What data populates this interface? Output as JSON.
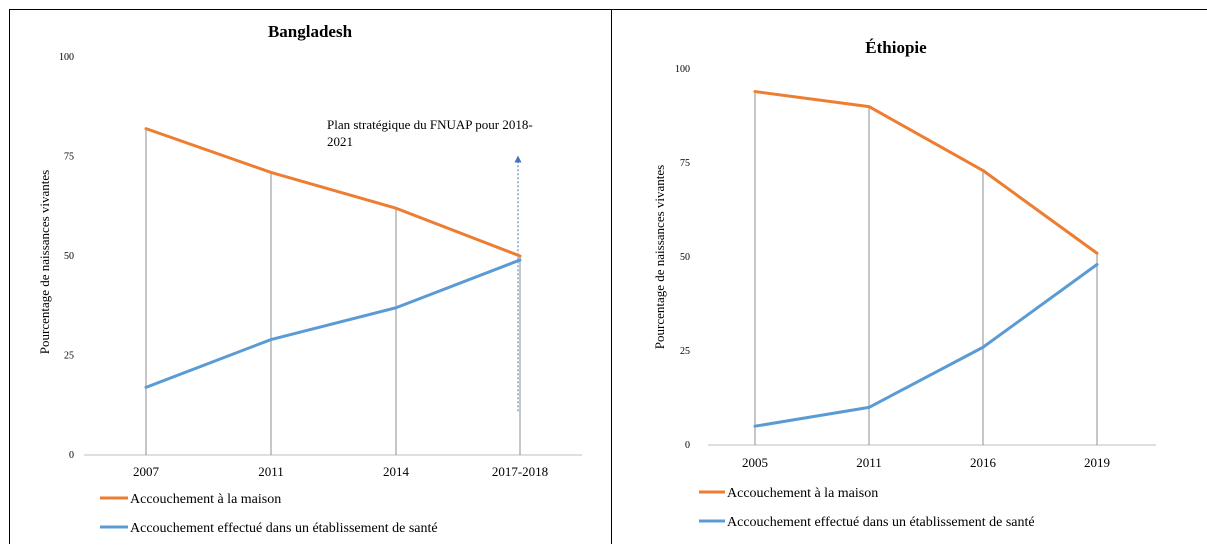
{
  "colors": {
    "home_delivery": "#ED7D31",
    "facility_delivery": "#5B9BD5",
    "drop_lines": "#8C8C8C",
    "annotation_arrow": "#4472C4",
    "axis": "#BFBFBF",
    "text": "#000000"
  },
  "legend": {
    "home": "Accouchement à la maison",
    "facility": "Accouchement effectué dans un établissement de santé"
  },
  "chart_data": [
    {
      "type": "line",
      "title": "Bangladesh",
      "xlabel": "",
      "ylabel": "Pourcentage de naissances vivantes",
      "categories": [
        "2007",
        "2011",
        "2014",
        "2017-2018"
      ],
      "ylim": [
        0,
        100
      ],
      "yticks": [
        "0",
        "25",
        "50",
        "75",
        "100"
      ],
      "series": [
        {
          "name": "Accouchement à la maison",
          "values": [
            82,
            71,
            62,
            50
          ]
        },
        {
          "name": "Accouchement effectué dans un établissement de santé",
          "values": [
            17,
            29,
            37,
            49
          ]
        }
      ],
      "drop_lines": true,
      "grid": false,
      "legend_position": "bottom-left",
      "annotation": {
        "text_line1": "Plan stratégique du FNUAP pour 2018-",
        "text_line2": "2021",
        "category": "2017-2018",
        "arrow_from": 11,
        "arrow_to": 74
      }
    },
    {
      "type": "line",
      "title": "Éthiopie",
      "xlabel": "",
      "ylabel": "Pourcentage de naissances vivantes",
      "categories": [
        "2005",
        "2011",
        "2016",
        "2019"
      ],
      "ylim": [
        0,
        100
      ],
      "yticks": [
        "0",
        "25",
        "50",
        "75",
        "100"
      ],
      "series": [
        {
          "name": "Accouchement à la maison",
          "values": [
            94,
            90,
            73,
            51
          ]
        },
        {
          "name": "Accouchement effectué dans un établissement de santé",
          "values": [
            5,
            10,
            26,
            48
          ]
        }
      ],
      "drop_lines": true,
      "grid": false,
      "legend_position": "bottom-left"
    }
  ]
}
